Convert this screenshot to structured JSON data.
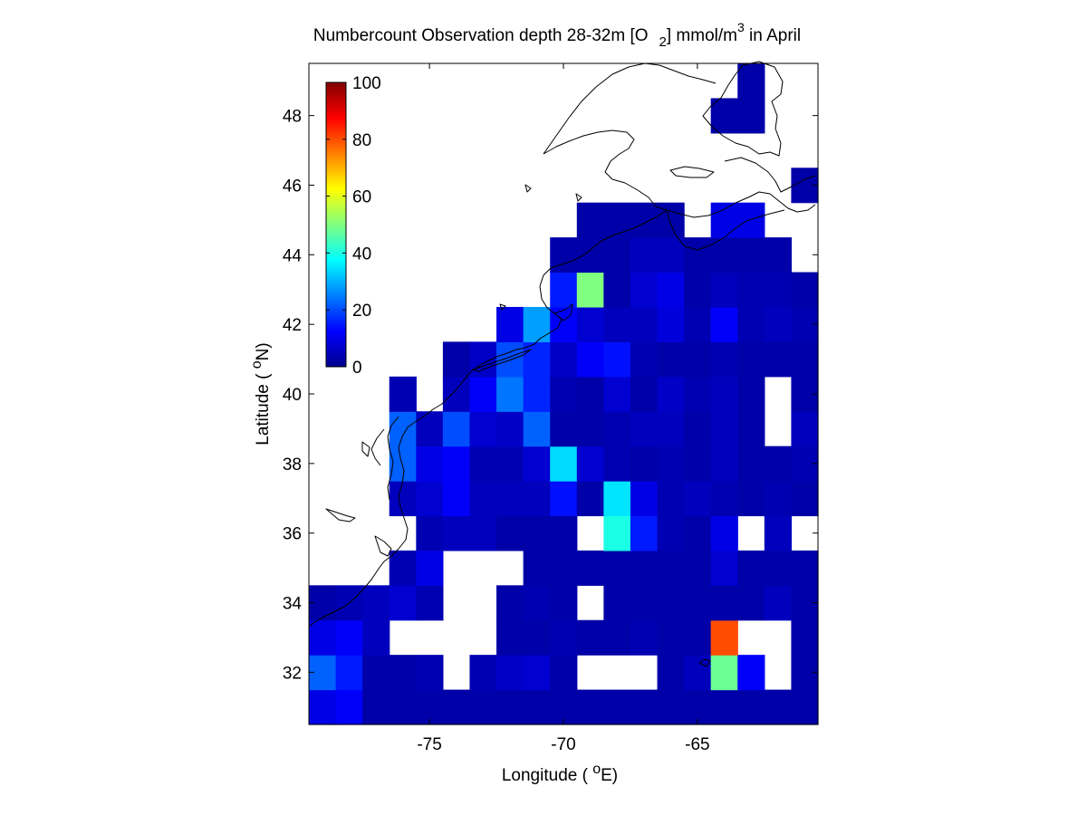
{
  "title": {
    "prefix": "Numbercount Observation depth 28-32m [O",
    "subscript": "2",
    "mid": "] mmol/m",
    "superscript": "3",
    "suffix": " in April"
  },
  "xlabel": {
    "prefix": "Longitude ( ",
    "degree": "o",
    "suffix": "E)"
  },
  "ylabel": {
    "prefix": "Latitude ( ",
    "degree": "o",
    "suffix": "N)"
  },
  "chart_data": {
    "type": "heatmap",
    "colormap": "jet",
    "x_range": [
      -79.5,
      -60.5
    ],
    "y_range": [
      30.5,
      49.5
    ],
    "x_ticks": [
      -75,
      -70,
      -65
    ],
    "y_ticks": [
      32,
      34,
      36,
      38,
      40,
      42,
      44,
      46,
      48
    ],
    "x_tick_labels": [
      "-75",
      "-70",
      "-65"
    ],
    "y_tick_labels": [
      "32",
      "34",
      "36",
      "38",
      "40",
      "42",
      "44",
      "46",
      "48"
    ],
    "cell_size_deg": 1,
    "grid_origin": {
      "lon": -79.5,
      "lat": 30.5
    },
    "colorbar": {
      "range": [
        0,
        100
      ],
      "ticks": [
        0,
        20,
        40,
        60,
        80,
        100
      ],
      "tick_labels": [
        "0",
        "20",
        "40",
        "60",
        "80",
        "100"
      ],
      "placement": "upper-left inside"
    },
    "rows_from_south": [
      [
        10,
        12,
        4,
        4,
        4,
        4,
        4,
        4,
        4,
        4,
        4,
        4,
        4,
        4,
        4,
        4,
        4,
        4,
        4
      ],
      [
        22,
        15,
        4,
        4,
        5,
        null,
        5,
        7,
        8,
        4,
        null,
        null,
        null,
        4,
        6,
        48,
        12,
        null,
        4
      ],
      [
        10,
        12,
        6,
        null,
        null,
        null,
        null,
        4,
        4,
        5,
        4,
        4,
        5,
        4,
        4,
        80,
        null,
        null,
        4
      ],
      [
        4,
        5,
        6,
        8,
        5,
        null,
        null,
        4,
        5,
        4,
        null,
        4,
        4,
        4,
        4,
        4,
        4,
        6,
        4
      ],
      [
        null,
        null,
        null,
        5,
        10,
        null,
        null,
        null,
        4,
        4,
        4,
        4,
        4,
        4,
        4,
        8,
        4,
        4,
        4
      ],
      [
        null,
        null,
        null,
        null,
        5,
        6,
        6,
        4,
        4,
        4,
        null,
        40,
        15,
        5,
        4,
        10,
        null,
        6,
        null
      ],
      [
        null,
        null,
        null,
        6,
        8,
        12,
        6,
        6,
        6,
        14,
        4,
        35,
        10,
        5,
        6,
        5,
        4,
        5,
        4
      ],
      [
        null,
        null,
        null,
        22,
        10,
        12,
        5,
        5,
        8,
        34,
        8,
        5,
        4,
        5,
        4,
        6,
        4,
        4,
        5
      ],
      [
        null,
        null,
        null,
        22,
        6,
        20,
        8,
        7,
        22,
        4,
        4,
        5,
        6,
        6,
        4,
        6,
        4,
        null,
        6
      ],
      [
        null,
        null,
        null,
        5,
        null,
        6,
        12,
        24,
        16,
        5,
        4,
        8,
        4,
        7,
        5,
        6,
        4,
        null,
        4
      ],
      [
        null,
        null,
        null,
        null,
        null,
        4,
        7,
        20,
        16,
        7,
        12,
        14,
        5,
        4,
        4,
        5,
        4,
        4,
        4
      ],
      [
        null,
        null,
        null,
        null,
        null,
        null,
        null,
        10,
        28,
        12,
        8,
        6,
        6,
        9,
        5,
        12,
        5,
        6,
        5
      ],
      [
        null,
        null,
        null,
        null,
        null,
        null,
        null,
        null,
        null,
        15,
        50,
        4,
        8,
        10,
        4,
        6,
        5,
        5,
        4
      ],
      [
        null,
        null,
        null,
        null,
        null,
        null,
        null,
        null,
        null,
        4,
        4,
        4,
        6,
        6,
        4,
        4,
        4,
        4,
        null
      ],
      [
        null,
        null,
        null,
        null,
        null,
        null,
        null,
        null,
        null,
        null,
        4,
        4,
        4,
        4,
        null,
        10,
        10,
        null,
        null
      ],
      [
        null,
        null,
        null,
        null,
        null,
        null,
        null,
        null,
        null,
        null,
        null,
        null,
        null,
        null,
        null,
        null,
        null,
        null,
        4
      ],
      [
        null,
        null,
        null,
        null,
        null,
        null,
        null,
        null,
        null,
        null,
        null,
        null,
        null,
        null,
        null,
        null,
        null,
        null,
        null
      ],
      [
        null,
        null,
        null,
        null,
        null,
        null,
        null,
        null,
        null,
        null,
        null,
        null,
        null,
        null,
        null,
        4,
        4,
        null,
        null
      ],
      [
        null,
        null,
        null,
        null,
        null,
        null,
        null,
        null,
        null,
        null,
        null,
        null,
        null,
        null,
        null,
        null,
        4,
        null,
        null
      ]
    ]
  }
}
